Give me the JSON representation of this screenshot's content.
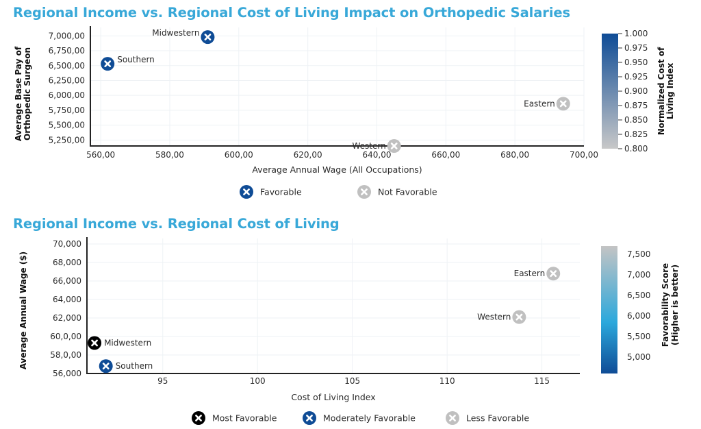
{
  "titles": {
    "top": "Regional Income vs. Regional Cost of Living Impact on Orthopedic Salaries",
    "bottom": "Regional Income vs. Regional Cost of Living"
  },
  "colors": {
    "title": "#38a8d8",
    "favorable": "#0f4c96",
    "not_favorable": "#c0c0c0",
    "most_favorable": "#000000",
    "moderately_favorable": "#0f4c96",
    "less_favorable": "#c0c0c0"
  },
  "chart_data": [
    {
      "type": "scatter",
      "title": "Regional Income vs. Regional Cost of Living Impact on Orthopedic Salaries",
      "xlabel": "Average Annual Wage (All Occupations)",
      "ylabel": [
        "Average Base Pay of",
        "Orthopedic Surgeon"
      ],
      "xlim": [
        557,
        700
      ],
      "ylim": [
        5150,
        7050
      ],
      "xticks": [
        560,
        580,
        600,
        620,
        640,
        660,
        680,
        700
      ],
      "xtick_labels": [
        "560,00",
        "580,00",
        "600,00",
        "620,00",
        "640,00",
        "660,00",
        "680,00",
        "700,00"
      ],
      "yticks": [
        5250,
        5500,
        5750,
        6000,
        6250,
        6500,
        6750,
        7000
      ],
      "ytick_labels": [
        "5,250,00",
        "5,500,00",
        "5,750,00",
        "6,000,00",
        "6,250,00",
        "6,500,00",
        "6,750,00",
        "7,000,00"
      ],
      "grid": true,
      "points": [
        {
          "label": "Midwestern",
          "x": 591,
          "y": 6980,
          "category": "Favorable",
          "label_side": "left"
        },
        {
          "label": "Southern",
          "x": 562,
          "y": 6530,
          "category": "Favorable",
          "label_side": "right"
        },
        {
          "label": "Eastern",
          "x": 694,
          "y": 5860,
          "category": "Not Favorable",
          "label_side": "left"
        },
        {
          "label": "Western",
          "x": 645,
          "y": 5150,
          "category": "Not Favorable",
          "label_side": "left"
        }
      ],
      "legend": [
        {
          "label": "Favorable",
          "category": "Favorable"
        },
        {
          "label": "Not Favorable",
          "category": "Not Favorable"
        }
      ],
      "legend_position": "bottom",
      "colorbar": {
        "label": [
          "Normalized Cost of",
          "Living Index"
        ],
        "range": [
          0.8,
          1.0
        ],
        "ticks": [
          "1.000",
          "0.975",
          "0.950",
          "0.925",
          "0.900",
          "0.875",
          "0.850",
          "0.825",
          "0.800"
        ],
        "color_low": "#c8c8c8",
        "color_high": "#0f4c96"
      }
    },
    {
      "type": "scatter",
      "title": "Regional Income vs. Regional Cost of Living",
      "xlabel": "Cost of Living Index",
      "ylabel": [
        "Average Annual Wage ($)"
      ],
      "xlim": [
        91,
        117
      ],
      "ylim": [
        56000,
        70000
      ],
      "xticks": [
        95,
        100,
        105,
        110,
        115
      ],
      "xtick_labels": [
        "95",
        "100",
        "105",
        "110",
        "115"
      ],
      "yticks": [
        56000,
        58000,
        60000,
        62000,
        64000,
        66000,
        68000,
        70000
      ],
      "ytick_labels": [
        "56,000",
        "58,0,00",
        "60,0,00",
        "62,000",
        "64,000",
        "66,000",
        "68,000",
        "70,000"
      ],
      "grid": true,
      "points": [
        {
          "label": "Eastern",
          "x": 115.6,
          "y": 66800,
          "category": "Less Favorable",
          "label_side": "left"
        },
        {
          "label": "Western",
          "x": 113.8,
          "y": 62100,
          "category": "Less Favorable",
          "label_side": "left"
        },
        {
          "label": "Midwestern",
          "x": 91.4,
          "y": 59300,
          "category": "Most Favorable",
          "label_side": "right"
        },
        {
          "label": "Southern",
          "x": 92.0,
          "y": 56800,
          "category": "Moderately Favorable",
          "label_side": "right"
        }
      ],
      "legend": [
        {
          "label": "Most Favorable",
          "category": "Most Favorable"
        },
        {
          "label": "Moderately Favorable",
          "category": "Moderately Favorable"
        },
        {
          "label": "Less Favorable",
          "category": "Less Favorable"
        }
      ],
      "legend_position": "bottom",
      "colorbar": {
        "label": [
          "Favorability Score",
          "(Higher is better)"
        ],
        "range": [
          4600,
          7700
        ],
        "ticks": [
          "7,500",
          "7,000",
          "6,500",
          "6,000",
          "5,500",
          "5,000"
        ],
        "color_low": "#0f4c96",
        "color_mid": "#2ba8dc",
        "color_high": "#c4c4c4"
      }
    }
  ]
}
